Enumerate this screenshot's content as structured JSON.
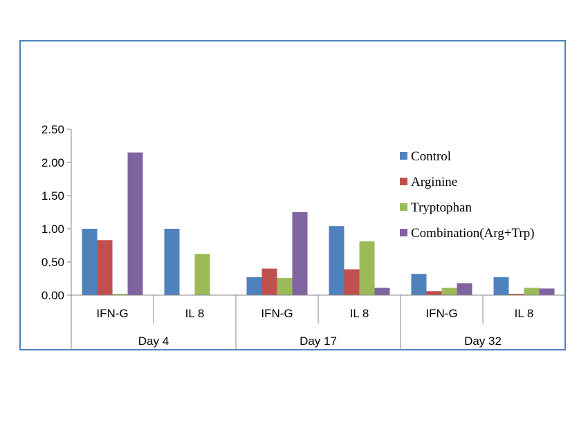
{
  "chart_data": {
    "type": "bar",
    "groups": [
      "Day 4",
      "Day 17",
      "Day 32"
    ],
    "categories": [
      "IFN-G",
      "IL 8",
      "IFN-G",
      "IL 8",
      "IFN-G",
      "IL 8"
    ],
    "series": [
      {
        "name": "Control",
        "color": "#4f81bd",
        "values": [
          1.0,
          1.0,
          0.27,
          1.04,
          0.32,
          0.27
        ]
      },
      {
        "name": "Arginine",
        "color": "#c0504d",
        "values": [
          0.83,
          0.0,
          0.4,
          0.39,
          0.06,
          0.02
        ]
      },
      {
        "name": "Tryptophan",
        "color": "#9bbb59",
        "values": [
          0.02,
          0.62,
          0.26,
          0.81,
          0.11,
          0.11
        ]
      },
      {
        "name": "Combination(Arg+Trp)",
        "color": "#8064a2",
        "values": [
          2.15,
          0.0,
          1.25,
          0.11,
          0.18,
          0.1
        ]
      }
    ],
    "y_ticks": [
      "0.00",
      "0.50",
      "1.00",
      "1.50",
      "2.00",
      "2.50"
    ],
    "ylim": [
      0,
      2.5
    ],
    "legend": "right",
    "grid": false,
    "title": "",
    "xlabel": "",
    "ylabel": ""
  }
}
